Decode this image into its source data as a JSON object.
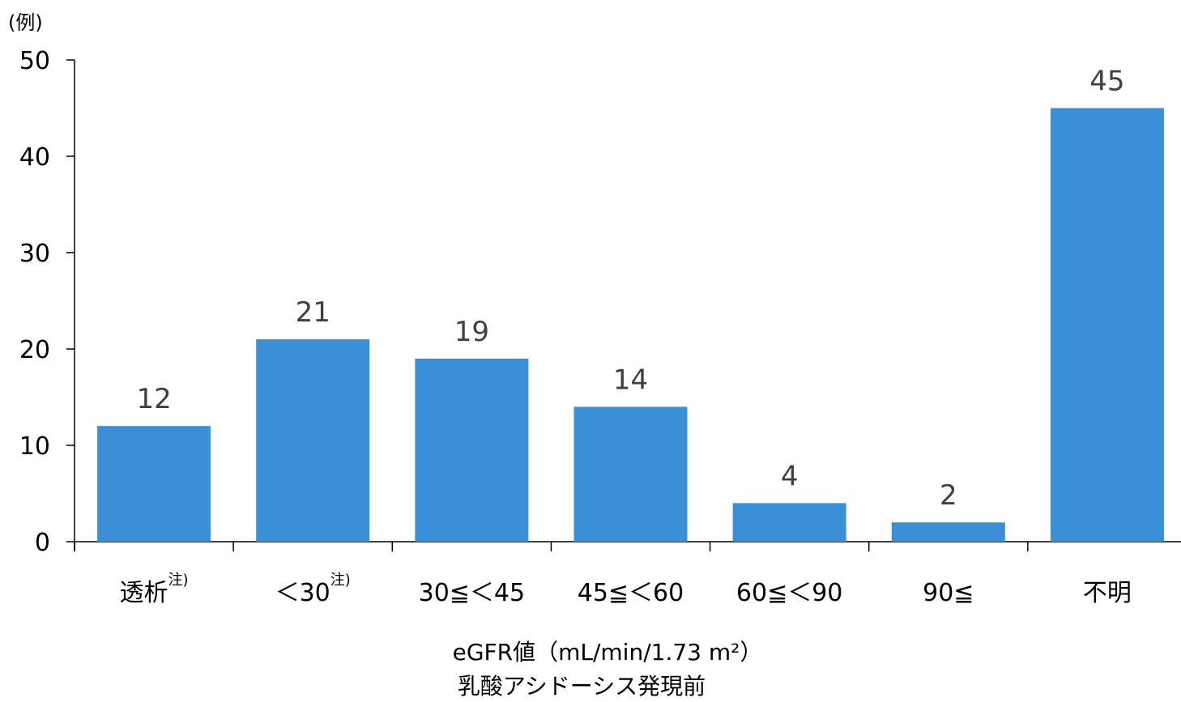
{
  "chart_data": {
    "type": "bar",
    "categories": [
      "透析",
      "＜30",
      "30≦＜45",
      "45≦＜60",
      "60≦＜90",
      "90≦",
      "不明"
    ],
    "category_notes": [
      "注)",
      "注)",
      "",
      "",
      "",
      "",
      ""
    ],
    "values": [
      12,
      21,
      19,
      14,
      4,
      2,
      45
    ],
    "data_labels": [
      "12",
      "21",
      "19",
      "14",
      "4",
      "2",
      "45"
    ],
    "y_unit": "(例)",
    "xlabel_line1": "eGFR値（mL/min/1.73 m²）",
    "xlabel_line2": "乳酸アシドーシス発現前",
    "ylim": [
      0,
      50
    ],
    "yticks": [
      0,
      10,
      20,
      30,
      40,
      50
    ],
    "bar_color": "#3a8fd6",
    "grid": false,
    "legend": "none"
  }
}
